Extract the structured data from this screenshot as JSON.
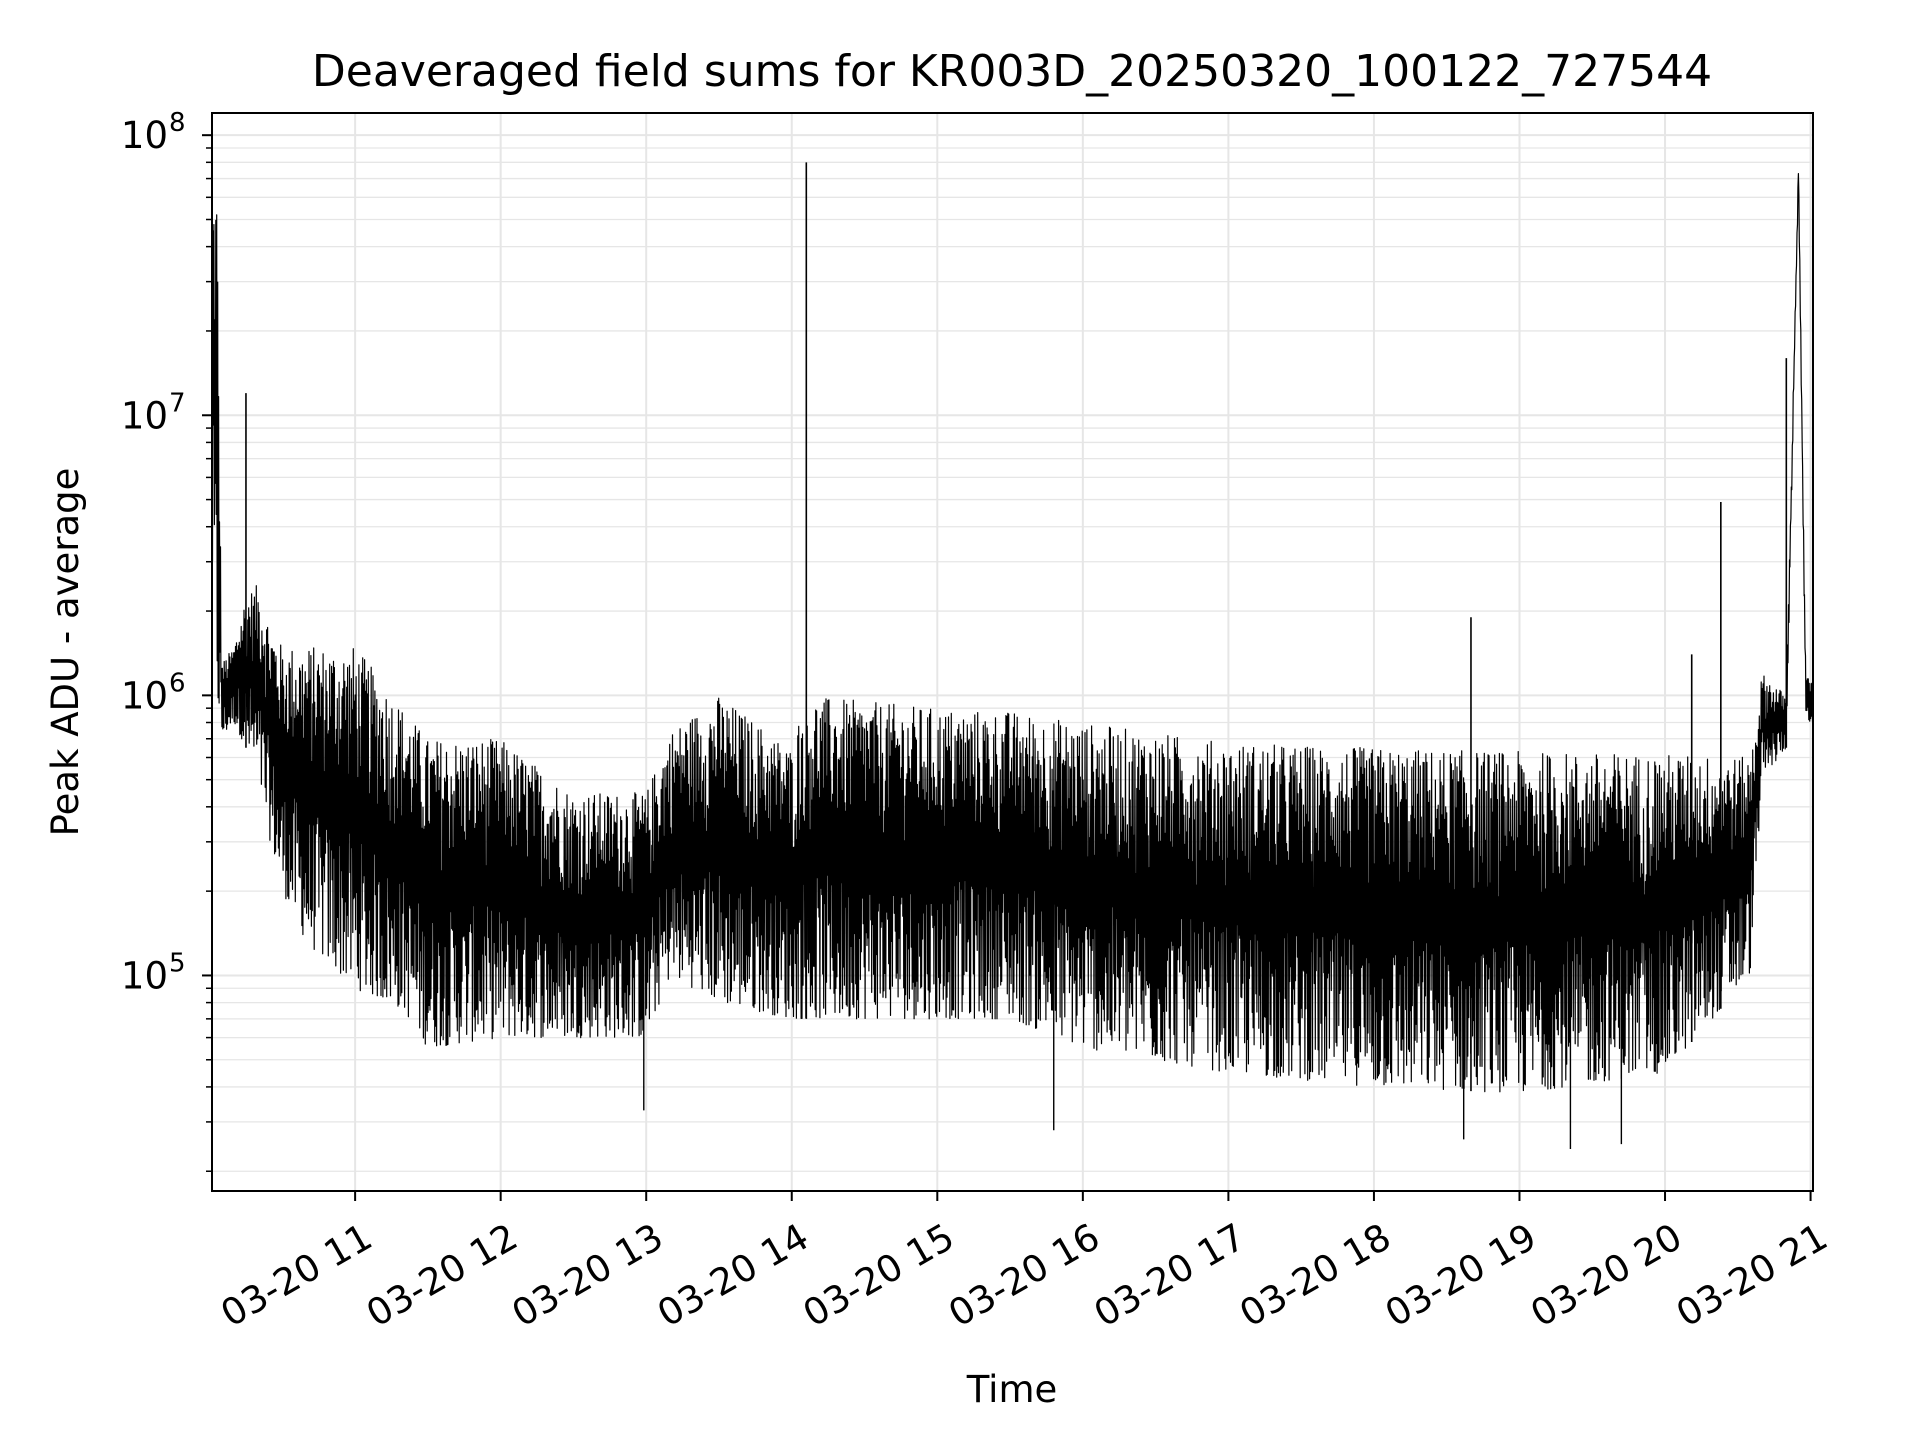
{
  "chart_data": {
    "type": "line",
    "title": "Deaveraged field sums for KR003D_20250320_100122_727544",
    "xlabel": "Time",
    "ylabel": "Peak ADU - average",
    "xscale": "time",
    "yscale": "log",
    "xlim": [
      "2025-03-20 10:01",
      "2025-03-20 21:01"
    ],
    "ylim": [
      17000,
      120000000
    ],
    "grid": true,
    "grid_color": "#e6e6e6",
    "line_color": "#000000",
    "x_ticks": [
      {
        "value": "2025-03-20 11:00",
        "label": "03-20 11"
      },
      {
        "value": "2025-03-20 12:00",
        "label": "03-20 12"
      },
      {
        "value": "2025-03-20 13:00",
        "label": "03-20 13"
      },
      {
        "value": "2025-03-20 14:00",
        "label": "03-20 14"
      },
      {
        "value": "2025-03-20 15:00",
        "label": "03-20 15"
      },
      {
        "value": "2025-03-20 16:00",
        "label": "03-20 16"
      },
      {
        "value": "2025-03-20 17:00",
        "label": "03-20 17"
      },
      {
        "value": "2025-03-20 18:00",
        "label": "03-20 18"
      },
      {
        "value": "2025-03-20 19:00",
        "label": "03-20 19"
      },
      {
        "value": "2025-03-20 20:00",
        "label": "03-20 20"
      },
      {
        "value": "2025-03-20 21:00",
        "label": "03-20 21"
      }
    ],
    "y_ticks": [
      {
        "value": 100000,
        "base": "10",
        "exp": "5"
      },
      {
        "value": 1000000,
        "base": "10",
        "exp": "6"
      },
      {
        "value": 10000000,
        "base": "10",
        "exp": "7"
      },
      {
        "value": 100000000,
        "base": "10",
        "exp": "8"
      }
    ],
    "envelope": [
      {
        "t": "2025-03-20 10:01",
        "high": 65000000,
        "low": 2500000
      },
      {
        "t": "2025-03-20 10:03",
        "high": 72000000,
        "low": 900000
      },
      {
        "t": "2025-03-20 10:05",
        "high": 1300000,
        "low": 700000
      },
      {
        "t": "2025-03-20 10:10",
        "high": 1500000,
        "low": 800000
      },
      {
        "t": "2025-03-20 10:15",
        "high": 2300000,
        "low": 650000
      },
      {
        "t": "2025-03-20 10:20",
        "high": 2500000,
        "low": 500000
      },
      {
        "t": "2025-03-20 10:25",
        "high": 1800000,
        "low": 300000
      },
      {
        "t": "2025-03-20 10:30",
        "high": 1500000,
        "low": 200000
      },
      {
        "t": "2025-03-20 10:40",
        "high": 1500000,
        "low": 130000
      },
      {
        "t": "2025-03-20 11:00",
        "high": 1500000,
        "low": 90000
      },
      {
        "t": "2025-03-20 11:20",
        "high": 900000,
        "low": 75000
      },
      {
        "t": "2025-03-20 11:30",
        "high": 700000,
        "low": 55000
      },
      {
        "t": "2025-03-20 12:00",
        "high": 700000,
        "low": 60000
      },
      {
        "t": "2025-03-20 12:30",
        "high": 450000,
        "low": 60000
      },
      {
        "t": "2025-03-20 13:00",
        "high": 450000,
        "low": 60000
      },
      {
        "t": "2025-03-20 13:10",
        "high": 750000,
        "low": 100000
      },
      {
        "t": "2025-03-20 13:30",
        "high": 1000000,
        "low": 80000
      },
      {
        "t": "2025-03-20 14:00",
        "high": 650000,
        "low": 70000
      },
      {
        "t": "2025-03-20 14:05",
        "high": 1000000,
        "low": 70000
      },
      {
        "t": "2025-03-20 15:00",
        "high": 900000,
        "low": 70000
      },
      {
        "t": "2025-03-20 15:30",
        "high": 880000,
        "low": 70000
      },
      {
        "t": "2025-03-20 16:00",
        "high": 800000,
        "low": 55000
      },
      {
        "t": "2025-03-20 17:00",
        "high": 680000,
        "low": 45000
      },
      {
        "t": "2025-03-20 18:00",
        "high": 650000,
        "low": 40000
      },
      {
        "t": "2025-03-20 19:00",
        "high": 630000,
        "low": 38000
      },
      {
        "t": "2025-03-20 20:00",
        "high": 620000,
        "low": 45000
      },
      {
        "t": "2025-03-20 20:35",
        "high": 600000,
        "low": 100000
      },
      {
        "t": "2025-03-20 20:40",
        "high": 1200000,
        "low": 500000
      },
      {
        "t": "2025-03-20 20:50",
        "high": 1000000,
        "low": 650000
      },
      {
        "t": "2025-03-20 20:55",
        "high": 80000000,
        "low": 70000000
      },
      {
        "t": "2025-03-20 20:58",
        "high": 1200000,
        "low": 800000
      },
      {
        "t": "2025-03-20 21:01",
        "high": 1100000,
        "low": 800000
      }
    ],
    "spikes": [
      {
        "t": "2025-03-20 10:15",
        "value": 12000000
      },
      {
        "t": "2025-03-20 14:06",
        "value": 80000000
      },
      {
        "t": "2025-03-20 18:40",
        "value": 1900000
      },
      {
        "t": "2025-03-20 20:11",
        "value": 1400000
      },
      {
        "t": "2025-03-20 20:23",
        "value": 4900000
      },
      {
        "t": "2025-03-20 20:50",
        "value": 16000000
      }
    ],
    "dips": [
      {
        "t": "2025-03-20 12:59",
        "value": 33000
      },
      {
        "t": "2025-03-20 15:48",
        "value": 28000
      },
      {
        "t": "2025-03-20 18:37",
        "value": 26000
      },
      {
        "t": "2025-03-20 19:21",
        "value": 24000
      },
      {
        "t": "2025-03-20 19:42",
        "value": 25000
      }
    ]
  }
}
